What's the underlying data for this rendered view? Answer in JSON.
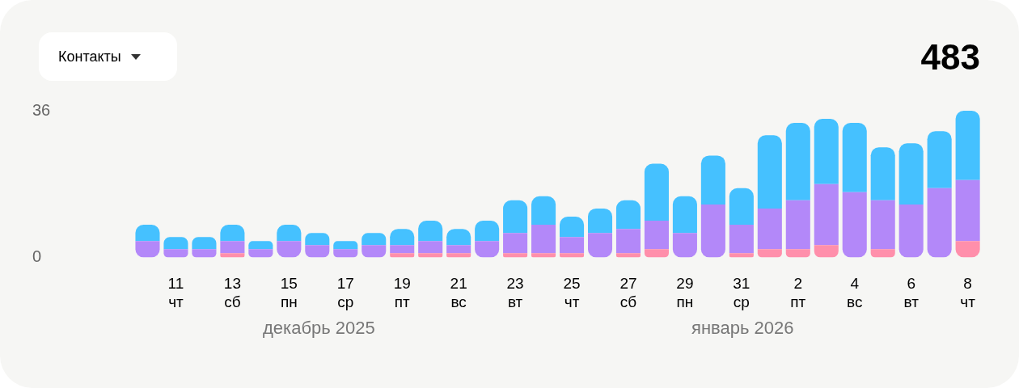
{
  "chart_data": {
    "type": "bar",
    "title": "Контакты",
    "subtitle": "483",
    "stacked": true,
    "legend": false,
    "categories": [
      null,
      "11\nчт",
      null,
      "13\nсб",
      null,
      "15\nпн",
      null,
      "17\nср",
      null,
      "19\nпт",
      null,
      "21\nвс",
      null,
      "23\nвт",
      null,
      "25\nчт",
      null,
      "27\nсб",
      null,
      "29\nпн",
      null,
      "31\nср",
      null,
      "2\nпт",
      null,
      "4\nвс",
      null,
      "6\nвт",
      null,
      "8\nчт"
    ],
    "series": [
      {
        "color": "#ff8fab",
        "values": [
          0,
          0,
          0,
          1,
          0,
          0,
          0,
          0,
          0,
          1,
          1,
          1,
          0,
          1,
          1,
          1,
          0,
          1,
          2,
          0,
          0,
          1,
          2,
          2,
          3,
          0,
          2,
          0,
          0,
          4
        ]
      },
      {
        "color": "#b388f9",
        "values": [
          4,
          2,
          2,
          3,
          2,
          4,
          3,
          2,
          3,
          2,
          3,
          2,
          4,
          5,
          7,
          4,
          6,
          6,
          7,
          6,
          13,
          7,
          10,
          12,
          15,
          16,
          12,
          13,
          17,
          15
        ]
      },
      {
        "color": "#45c1ff",
        "values": [
          4,
          3,
          3,
          4,
          2,
          4,
          3,
          2,
          3,
          4,
          5,
          4,
          5,
          8,
          7,
          5,
          6,
          7,
          14,
          9,
          12,
          9,
          18,
          19,
          16,
          17,
          13,
          15,
          14,
          17
        ]
      }
    ],
    "ylim": [
      0,
      36
    ],
    "yticks": [
      0,
      36
    ],
    "annotations": [
      "декабрь 2025",
      "январь 2026"
    ]
  }
}
